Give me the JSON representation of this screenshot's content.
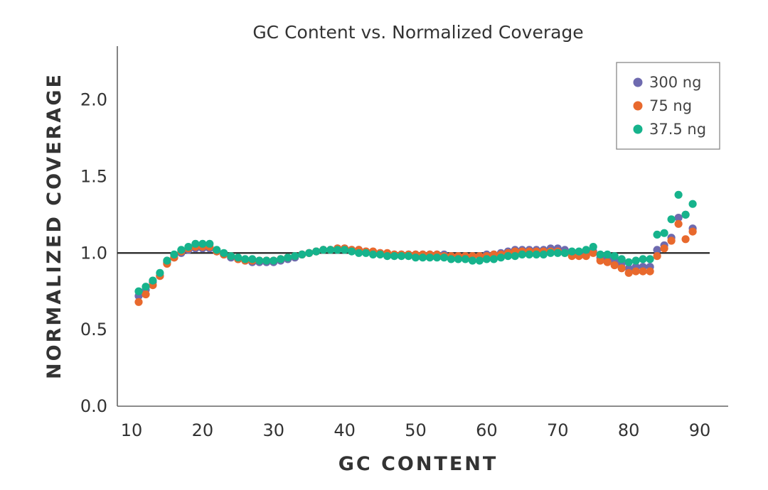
{
  "chart_data": {
    "type": "scatter",
    "title": "GC Content vs. Normalized Coverage",
    "xlabel": "GC CONTENT",
    "ylabel": "NORMALIZED COVERAGE",
    "xlim": [
      8,
      94
    ],
    "ylim": [
      0,
      2.35
    ],
    "xticks": [
      10,
      20,
      30,
      40,
      50,
      60,
      70,
      80,
      90
    ],
    "yticks": [
      0.0,
      0.5,
      1.0,
      1.5,
      2.0
    ],
    "ytick_labels": [
      "0.0",
      "0.5",
      "1.0",
      "1.5",
      "2.0"
    ],
    "reference_line": 1.0,
    "legend_position": "top-right",
    "x": [
      11,
      12,
      13,
      14,
      15,
      16,
      17,
      18,
      19,
      20,
      21,
      22,
      23,
      24,
      25,
      26,
      27,
      28,
      29,
      30,
      31,
      32,
      33,
      34,
      35,
      36,
      37,
      38,
      39,
      40,
      41,
      42,
      43,
      44,
      45,
      46,
      47,
      48,
      49,
      50,
      51,
      52,
      53,
      54,
      55,
      56,
      57,
      58,
      59,
      60,
      61,
      62,
      63,
      64,
      65,
      66,
      67,
      68,
      69,
      70,
      71,
      72,
      73,
      74,
      75,
      76,
      77,
      78,
      79,
      80,
      81,
      82,
      83,
      84,
      85,
      86,
      87,
      88,
      89
    ],
    "series": [
      {
        "name": "300 ng",
        "color": "#6e6aaf",
        "values": [
          0.72,
          0.76,
          0.81,
          0.85,
          0.94,
          0.97,
          1.0,
          1.02,
          1.03,
          1.03,
          1.03,
          1.01,
          0.99,
          0.97,
          0.96,
          0.95,
          0.94,
          0.94,
          0.94,
          0.94,
          0.95,
          0.96,
          0.97,
          0.99,
          1.0,
          1.01,
          1.02,
          1.02,
          1.03,
          1.03,
          1.02,
          1.02,
          1.01,
          1.0,
          1.0,
          0.99,
          0.99,
          0.99,
          0.99,
          0.99,
          0.99,
          0.99,
          0.99,
          0.99,
          0.98,
          0.98,
          0.98,
          0.98,
          0.98,
          0.99,
          0.99,
          1.0,
          1.01,
          1.02,
          1.02,
          1.02,
          1.02,
          1.02,
          1.03,
          1.03,
          1.02,
          1.0,
          0.99,
          0.99,
          1.01,
          0.97,
          0.96,
          0.95,
          0.93,
          0.9,
          0.91,
          0.91,
          0.91,
          1.02,
          1.05,
          1.1,
          1.23,
          1.25,
          1.16
        ]
      },
      {
        "name": "75 ng",
        "color": "#e8692d",
        "values": [
          0.68,
          0.73,
          0.79,
          0.85,
          0.93,
          0.97,
          1.01,
          1.03,
          1.04,
          1.04,
          1.04,
          1.01,
          0.99,
          0.98,
          0.96,
          0.95,
          0.95,
          0.95,
          0.95,
          0.95,
          0.96,
          0.97,
          0.98,
          0.99,
          1.0,
          1.01,
          1.02,
          1.02,
          1.03,
          1.03,
          1.02,
          1.02,
          1.01,
          1.01,
          1.0,
          1.0,
          0.99,
          0.99,
          0.99,
          0.99,
          0.99,
          0.99,
          0.99,
          0.98,
          0.98,
          0.98,
          0.98,
          0.98,
          0.98,
          0.98,
          0.99,
          0.99,
          1.0,
          1.01,
          1.01,
          1.01,
          1.01,
          1.01,
          1.01,
          1.01,
          1.0,
          0.98,
          0.98,
          0.98,
          1.0,
          0.95,
          0.94,
          0.92,
          0.9,
          0.87,
          0.88,
          0.88,
          0.88,
          0.98,
          1.03,
          1.08,
          1.19,
          1.09,
          1.14
        ]
      },
      {
        "name": "37.5 ng",
        "color": "#16b38c",
        "values": [
          0.75,
          0.78,
          0.82,
          0.87,
          0.95,
          0.99,
          1.02,
          1.04,
          1.06,
          1.06,
          1.06,
          1.02,
          1.0,
          0.98,
          0.97,
          0.96,
          0.96,
          0.95,
          0.95,
          0.95,
          0.96,
          0.97,
          0.98,
          0.99,
          1.0,
          1.01,
          1.02,
          1.02,
          1.02,
          1.02,
          1.01,
          1.0,
          1.0,
          0.99,
          0.99,
          0.98,
          0.98,
          0.98,
          0.98,
          0.97,
          0.97,
          0.97,
          0.97,
          0.97,
          0.96,
          0.96,
          0.96,
          0.95,
          0.95,
          0.96,
          0.96,
          0.97,
          0.98,
          0.98,
          0.99,
          0.99,
          0.99,
          0.99,
          1.0,
          1.0,
          1.0,
          1.01,
          1.01,
          1.02,
          1.04,
          0.99,
          0.99,
          0.98,
          0.96,
          0.94,
          0.95,
          0.96,
          0.96,
          1.12,
          1.13,
          1.22,
          1.38,
          1.25,
          1.32
        ]
      }
    ]
  }
}
